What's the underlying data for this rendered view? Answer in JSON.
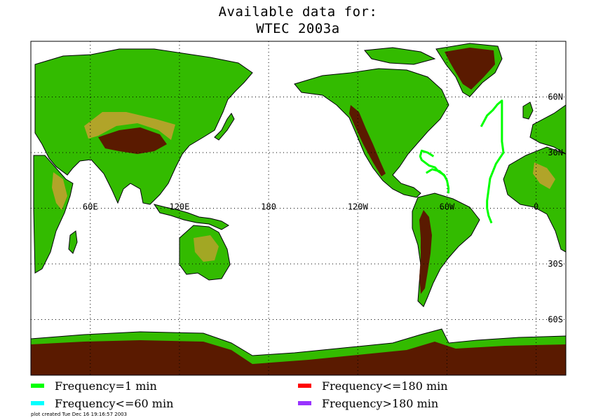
{
  "title": {
    "line1": "Available data for:",
    "line2": "WTEC 2003a"
  },
  "map": {
    "lon_labels": [
      "60E",
      "120E",
      "180",
      "120W",
      "60W",
      "0"
    ],
    "lat_labels": [
      "60N",
      "30N",
      "30S",
      "60S"
    ],
    "lon_values": [
      60,
      120,
      180,
      240,
      300,
      360
    ],
    "lat_values": [
      60,
      30,
      -30,
      -60
    ],
    "lon_range": [
      20,
      380
    ],
    "lat_range": [
      -90,
      90
    ],
    "track_color": "#00ff00",
    "track": [
      [
        323,
        44
      ],
      [
        327,
        50
      ],
      [
        331,
        53
      ],
      [
        334,
        56
      ],
      [
        337,
        58
      ],
      [
        337,
        50
      ],
      [
        337,
        42
      ],
      [
        337,
        36
      ],
      [
        338,
        30
      ],
      [
        333,
        24
      ],
      [
        329,
        16
      ],
      [
        328,
        10
      ],
      [
        327,
        4
      ],
      [
        327,
        0
      ],
      [
        328,
        -4
      ],
      [
        330,
        -8
      ]
    ],
    "track2": [
      [
        291,
        28
      ],
      [
        287,
        30
      ],
      [
        283,
        31
      ],
      [
        282,
        28
      ],
      [
        283,
        26
      ],
      [
        288,
        23
      ],
      [
        292,
        22
      ],
      [
        294,
        20
      ],
      [
        298,
        18
      ],
      [
        300,
        15
      ],
      [
        301,
        11
      ],
      [
        301,
        8
      ]
    ],
    "track3": [
      [
        286,
        19
      ],
      [
        290,
        21
      ],
      [
        295,
        20
      ],
      [
        299,
        17
      ]
    ]
  },
  "legend": [
    {
      "label": "Frequency=1 min",
      "color": "#00ff00"
    },
    {
      "label": "Frequency<=60 min",
      "color": "#00ffff"
    },
    {
      "label": "Frequency<=180 min",
      "color": "#ff0000"
    },
    {
      "label": "Frequency>180 min",
      "color": "#9933ff"
    }
  ],
  "footer": "plot created Tue Dec 16 19:16:57 2003"
}
